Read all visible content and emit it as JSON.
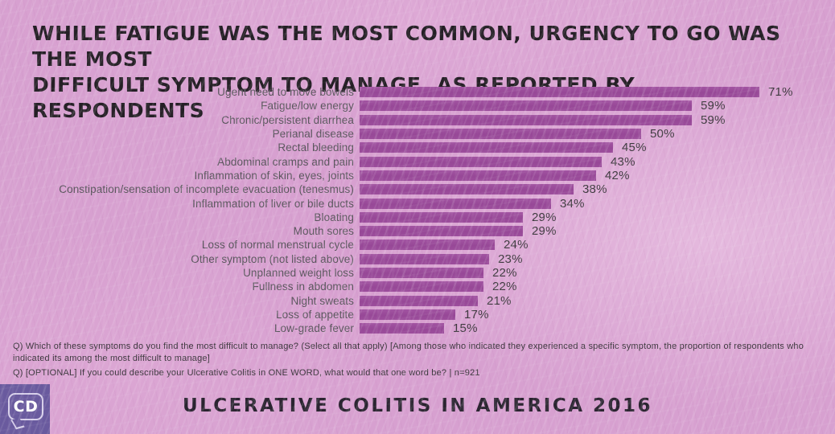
{
  "title_lines": [
    "WHILE FATIGUE WAS THE MOST COMMON, URGENCY TO GO WAS THE MOST",
    "DIFFICULT SYMPTOM TO MANAGE, AS REPORTED BY RESPONDENTS"
  ],
  "chart_data": {
    "type": "bar",
    "orientation": "horizontal",
    "categories": [
      "Ugent need to move bowels",
      "Fatigue/low energy",
      "Chronic/persistent diarrhea",
      "Perianal disease",
      "Rectal bleeding",
      "Abdominal cramps and pain",
      "Inflammation of skin, eyes, joints",
      "Constipation/sensation of incomplete evacuation (tenesmus)",
      "Inflammation of liver or bile ducts",
      "Bloating",
      "Mouth sores",
      "Loss of normal menstrual cycle",
      "Other symptom (not listed above)",
      "Unplanned weight loss",
      "Fullness in abdomen",
      "Night sweats",
      "Loss of appetite",
      "Low-grade fever"
    ],
    "values": [
      71,
      59,
      59,
      50,
      45,
      43,
      42,
      38,
      34,
      29,
      29,
      24,
      23,
      22,
      22,
      21,
      17,
      15
    ],
    "value_suffix": "%",
    "xlim": [
      0,
      100
    ],
    "data_labels": "outside-end",
    "grid": false,
    "legend": false,
    "bar_color": "#9b4b9b"
  },
  "footnotes": {
    "q1": "Q) Which of these symptoms do you find the most difficult to manage? (Select all that apply) [Among those who indicated they experienced a specific symptom, the proportion of respondents who indicated its among the most difficult to manage]",
    "q2": "Q) [OPTIONAL] If you could describe your Ulcerative Colitis in ONE WORD, what would that one word be? | n=921"
  },
  "footer": {
    "brand": "ULCERATIVE COLITIS IN AMERICA 2016",
    "logo_text": "CD"
  },
  "colors": {
    "background": "#d7a0d0",
    "bar": "#9b4b9b",
    "title_text": "#241f25",
    "label_text": "#59555c",
    "value_text": "#3c383d",
    "logo_background": "#695a9e"
  }
}
